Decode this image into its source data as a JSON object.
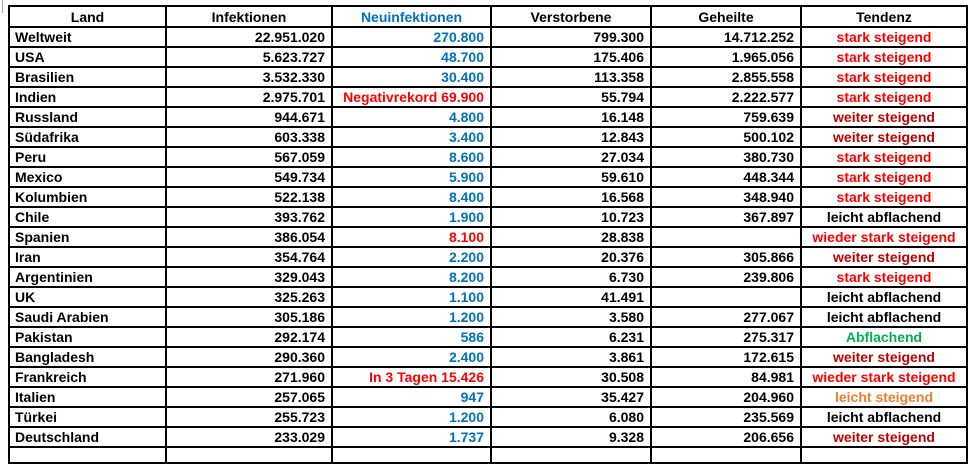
{
  "colors": {
    "black": "#000000",
    "blue": "#0070C0",
    "red": "#FF0000",
    "darkred": "#C00000",
    "green": "#00B050",
    "orange": "#ED7D31"
  },
  "table": {
    "headers": [
      {
        "label": "Land",
        "color": "black"
      },
      {
        "label": "Infektionen",
        "color": "black"
      },
      {
        "label": "Neuinfektionen",
        "color": "blue"
      },
      {
        "label": "Verstorbene",
        "color": "black"
      },
      {
        "label": "Geheilte",
        "color": "black"
      },
      {
        "label": "Tendenz",
        "color": "black"
      }
    ],
    "rows": [
      {
        "land": "Weltweit",
        "infektionen": "22.951.020",
        "neuinfektionen": "270.800",
        "neu_color": "blue",
        "verstorbene": "799.300",
        "geheilte": "14.712.252",
        "tendenz": "stark steigend",
        "tendenz_color": "red"
      },
      {
        "land": "USA",
        "infektionen": "5.623.727",
        "neuinfektionen": "48.700",
        "neu_color": "blue",
        "verstorbene": "175.406",
        "geheilte": "1.965.056",
        "tendenz": "stark steigend",
        "tendenz_color": "red"
      },
      {
        "land": "Brasilien",
        "infektionen": "3.532.330",
        "neuinfektionen": "30.400",
        "neu_color": "blue",
        "verstorbene": "113.358",
        "geheilte": "2.855.558",
        "tendenz": "stark steigend",
        "tendenz_color": "red"
      },
      {
        "land": "Indien",
        "infektionen": "2.975.701",
        "neuinfektionen": "Negativrekord 69.900",
        "neu_color": "red",
        "verstorbene": "55.794",
        "geheilte": "2.222.577",
        "tendenz": "stark steigend",
        "tendenz_color": "red"
      },
      {
        "land": "Russland",
        "infektionen": "944.671",
        "neuinfektionen": "4.800",
        "neu_color": "blue",
        "verstorbene": "16.148",
        "geheilte": "759.639",
        "tendenz": "weiter steigend",
        "tendenz_color": "darkred"
      },
      {
        "land": "Südafrika",
        "infektionen": "603.338",
        "neuinfektionen": "3.400",
        "neu_color": "blue",
        "verstorbene": "12.843",
        "geheilte": "500.102",
        "tendenz": "weiter steigend",
        "tendenz_color": "darkred"
      },
      {
        "land": "Peru",
        "infektionen": "567.059",
        "neuinfektionen": "8.600",
        "neu_color": "blue",
        "verstorbene": "27.034",
        "geheilte": "380.730",
        "tendenz": "stark steigend",
        "tendenz_color": "red"
      },
      {
        "land": "Mexico",
        "infektionen": "549.734",
        "neuinfektionen": "5.900",
        "neu_color": "blue",
        "verstorbene": "59.610",
        "geheilte": "448.344",
        "tendenz": "stark steigend",
        "tendenz_color": "red"
      },
      {
        "land": "Kolumbien",
        "infektionen": "522.138",
        "neuinfektionen": "8.400",
        "neu_color": "blue",
        "verstorbene": "16.568",
        "geheilte": "348.940",
        "tendenz": "stark steigend",
        "tendenz_color": "red"
      },
      {
        "land": "Chile",
        "infektionen": "393.762",
        "neuinfektionen": "1.900",
        "neu_color": "blue",
        "verstorbene": "10.723",
        "geheilte": "367.897",
        "tendenz": "leicht abflachend",
        "tendenz_color": "black"
      },
      {
        "land": "Spanien",
        "infektionen": "386.054",
        "neuinfektionen": "8.100",
        "neu_color": "red",
        "verstorbene": "28.838",
        "geheilte": "",
        "tendenz": "wieder stark steigend",
        "tendenz_color": "red"
      },
      {
        "land": "Iran",
        "infektionen": "354.764",
        "neuinfektionen": "2.200",
        "neu_color": "blue",
        "verstorbene": "20.376",
        "geheilte": "305.866",
        "tendenz": "weiter steigend",
        "tendenz_color": "darkred"
      },
      {
        "land": "Argentinien",
        "infektionen": "329.043",
        "neuinfektionen": "8.200",
        "neu_color": "blue",
        "verstorbene": "6.730",
        "geheilte": "239.806",
        "tendenz": "stark steigend",
        "tendenz_color": "red"
      },
      {
        "land": "UK",
        "infektionen": "325.263",
        "neuinfektionen": "1.100",
        "neu_color": "blue",
        "verstorbene": "41.491",
        "geheilte": "",
        "tendenz": "leicht abflachend",
        "tendenz_color": "black"
      },
      {
        "land": "Saudi Arabien",
        "infektionen": "305.186",
        "neuinfektionen": "1.200",
        "neu_color": "blue",
        "verstorbene": "3.580",
        "geheilte": "277.067",
        "tendenz": "leicht abflachend",
        "tendenz_color": "black"
      },
      {
        "land": "Pakistan",
        "infektionen": "292.174",
        "neuinfektionen": "586",
        "neu_color": "blue",
        "verstorbene": "6.231",
        "geheilte": "275.317",
        "tendenz": "Abflachend",
        "tendenz_color": "green"
      },
      {
        "land": "Bangladesh",
        "infektionen": "290.360",
        "neuinfektionen": "2.400",
        "neu_color": "blue",
        "verstorbene": "3.861",
        "geheilte": "172.615",
        "tendenz": "weiter steigend",
        "tendenz_color": "darkred",
        "spellcheck": true
      },
      {
        "land": "Frankreich",
        "infektionen": "271.960",
        "neuinfektionen": "In 3 Tagen 15.426",
        "neu_color": "red",
        "verstorbene": "30.508",
        "geheilte": "84.981",
        "tendenz": "wieder stark steigend",
        "tendenz_color": "red"
      },
      {
        "land": "Italien",
        "infektionen": "257.065",
        "neuinfektionen": "947",
        "neu_color": "blue",
        "verstorbene": "35.427",
        "geheilte": "204.960",
        "tendenz": "leicht steigend",
        "tendenz_color": "orange"
      },
      {
        "land": "Türkei",
        "infektionen": "255.723",
        "neuinfektionen": "1.200",
        "neu_color": "blue",
        "verstorbene": "6.080",
        "geheilte": "235.569",
        "tendenz": "leicht abflachend",
        "tendenz_color": "black"
      },
      {
        "land": "Deutschland",
        "infektionen": "233.029",
        "neuinfektionen": "1.737",
        "neu_color": "blue",
        "verstorbene": "9.328",
        "geheilte": "206.656",
        "tendenz": "weiter steigend",
        "tendenz_color": "darkred"
      }
    ]
  }
}
